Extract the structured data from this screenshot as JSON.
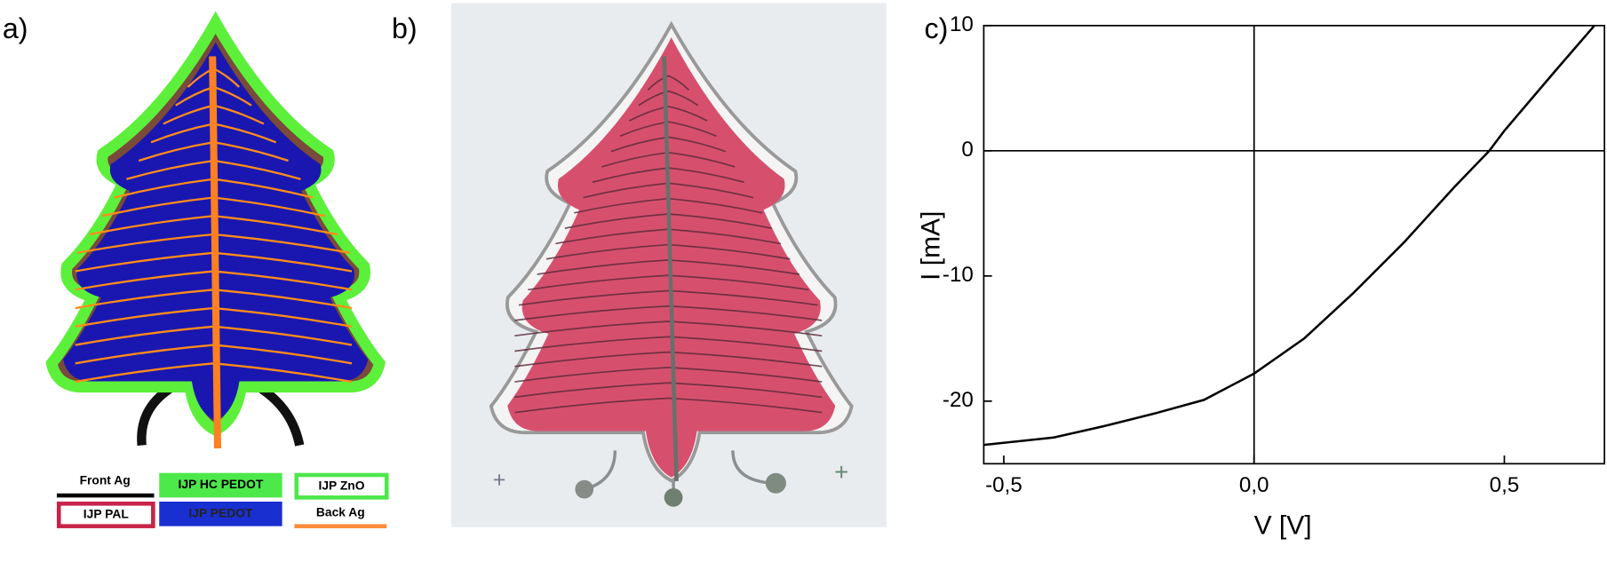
{
  "panels": [
    {
      "label": "a)",
      "legend": [
        "Front Ag",
        "IJP HC PEDOT",
        "IJP ZnO",
        "IJP PAL",
        "IJP PEDOT",
        "Back Ag"
      ]
    },
    {
      "label": "b)"
    },
    {
      "label": "c)"
    }
  ],
  "chart_data": {
    "type": "line",
    "x_label": "V [V]",
    "y_label": "I [mA]",
    "x": [
      -0.54,
      -0.4,
      -0.3,
      -0.2,
      -0.1,
      0,
      0.1,
      0.2,
      0.3,
      0.4,
      0.47,
      0.5,
      0.6,
      0.68
    ],
    "series": [
      {
        "color": "#000000",
        "values": [
          -23.5,
          -22.9,
          -22.0,
          -21.0,
          -19.9,
          -17.8,
          -15.0,
          -11.3,
          -7.3,
          -2.9,
          0,
          1.6,
          6.3,
          10
        ]
      }
    ],
    "xlim": [
      -0.54,
      0.7
    ],
    "ylim": [
      -25,
      10
    ],
    "xticks": [
      {
        "value": -0.5,
        "label": "-0,5"
      },
      {
        "value": 0,
        "label": "0,0"
      },
      {
        "value": 0.5,
        "label": "0,5"
      }
    ],
    "yticks": [
      -20,
      -10,
      0,
      10
    ]
  }
}
